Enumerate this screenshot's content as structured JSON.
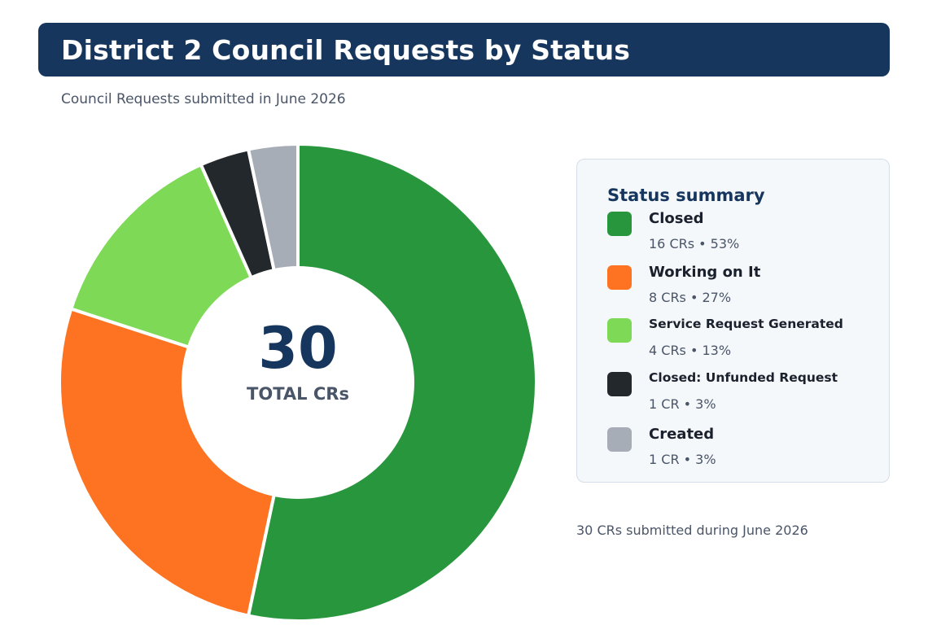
{
  "header": {
    "title": "District 2 Council Requests by Status",
    "subtitle": "Council Requests submitted in June 2026"
  },
  "center": {
    "value": "30",
    "label": "TOTAL CRs"
  },
  "legend": {
    "title": "Status summary",
    "items": [
      {
        "label": "Closed",
        "stats": "16 CRs  •  53%",
        "color": "#28963c"
      },
      {
        "label": "Working on It",
        "stats": "8 CRs  •  27%",
        "color": "#fd7322"
      },
      {
        "label": "Service Request Generated",
        "stats": "4 CRs  •  13%",
        "color": "#7ed957"
      },
      {
        "label": "Closed: Unfunded Request",
        "stats": "1 CR  •  3%",
        "color": "#23282d"
      },
      {
        "label": "Created",
        "stats": "1 CR  •  3%",
        "color": "#a7adb7"
      }
    ]
  },
  "footnote": "30 CRs submitted during June 2026",
  "chart_data": {
    "type": "pie",
    "donut": true,
    "title": "District 2 Council Requests by Status",
    "subtitle": "Council Requests submitted in June 2026",
    "total": 30,
    "categories": [
      "Closed",
      "Working on It",
      "Service Request Generated",
      "Closed: Unfunded Request",
      "Created"
    ],
    "values": [
      16,
      8,
      4,
      1,
      1
    ],
    "percentages": [
      53,
      27,
      13,
      3,
      3
    ],
    "colors": [
      "#28963c",
      "#fd7322",
      "#7ed957",
      "#23282d",
      "#a7adb7"
    ],
    "start": "12 o'clock",
    "direction": "clockwise",
    "legend_position": "right"
  }
}
